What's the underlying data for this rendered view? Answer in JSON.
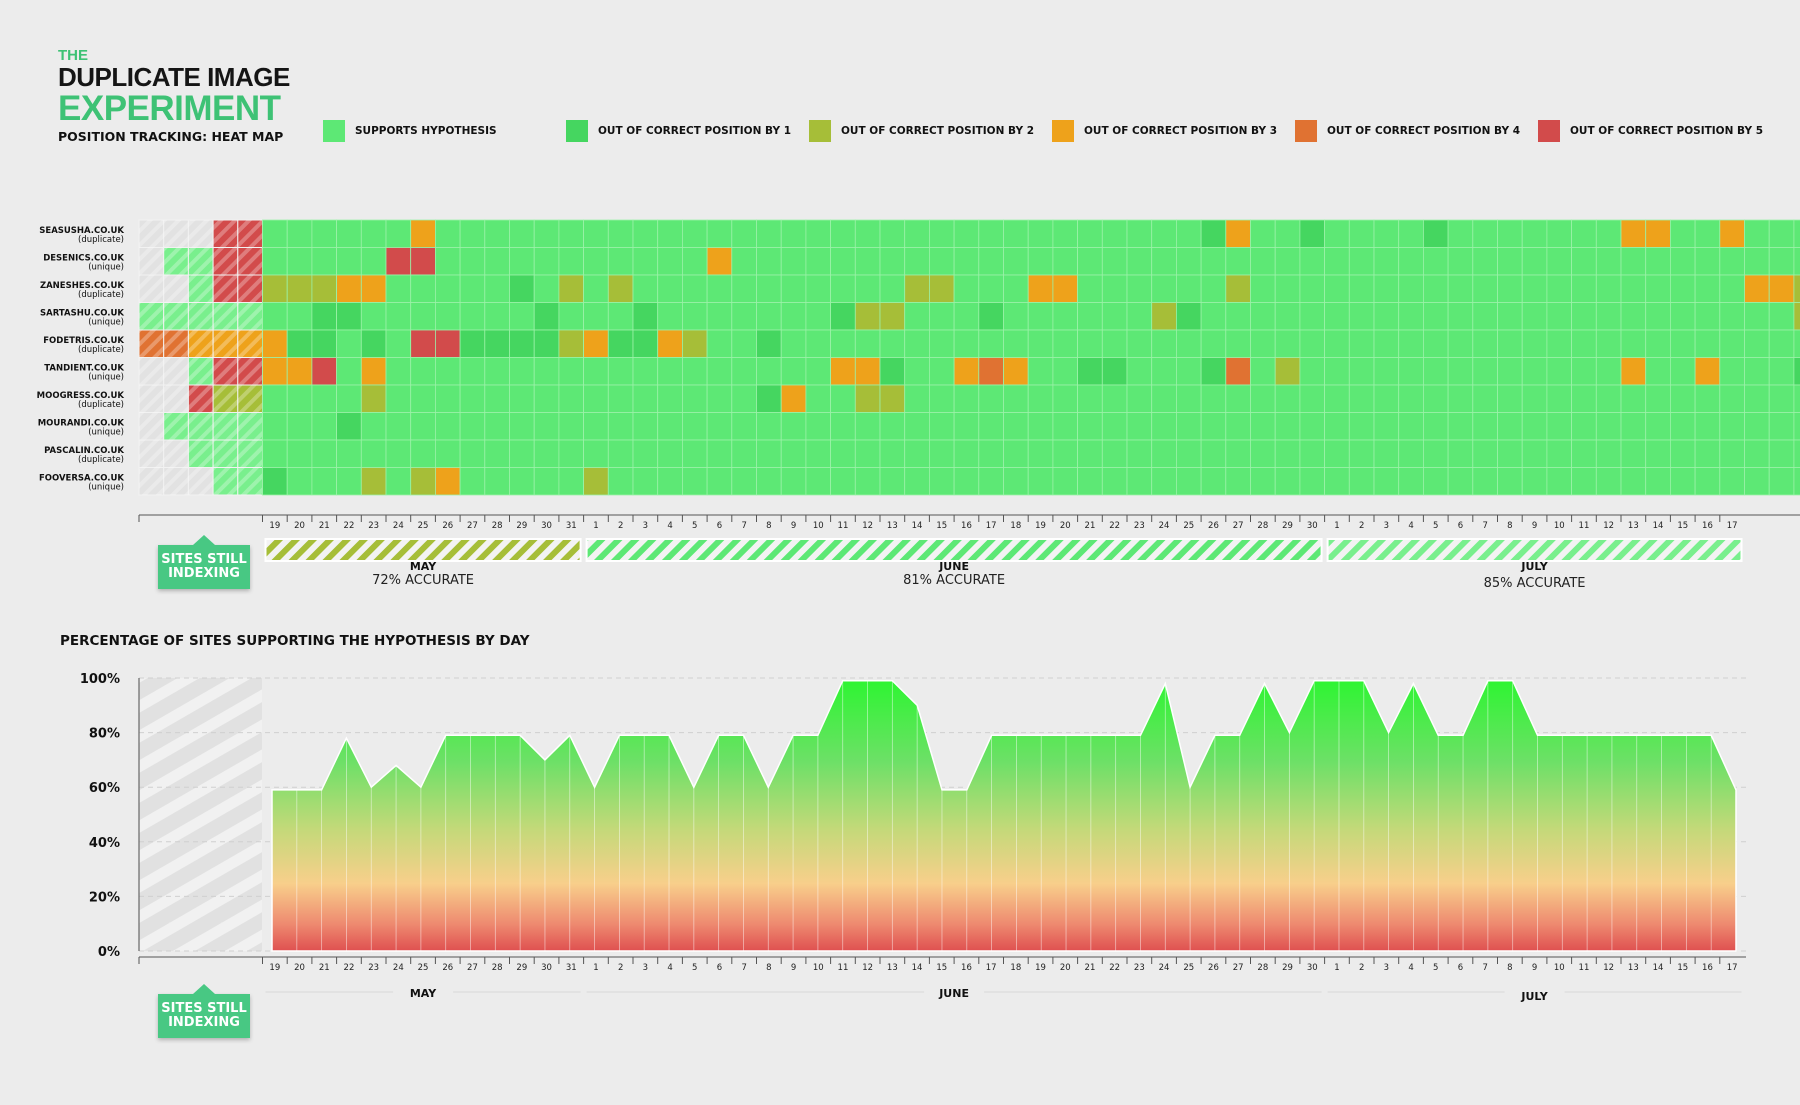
{
  "title": {
    "the": "THE",
    "line1": "DUPLICATE IMAGE",
    "line2": "EXPERIMENT",
    "caption": "POSITION TRACKING: HEAT MAP"
  },
  "colors": {
    "0": "#5de875",
    "1": "#45d660",
    "2": "#a6be38",
    "3": "#eea21b",
    "4": "#e07232",
    "5": "#d24b4b",
    "light": "#79ef8d"
  },
  "legend": [
    {
      "code": "0",
      "label": "SUPPORTS HYPOTHESIS"
    },
    {
      "code": "1",
      "label": "OUT OF CORRECT POSITION BY 1"
    },
    {
      "code": "2",
      "label": "OUT OF CORRECT POSITION BY 2"
    },
    {
      "code": "3",
      "label": "OUT OF CORRECT POSITION BY 3"
    },
    {
      "code": "4",
      "label": "OUT OF CORRECT POSITION BY 4"
    },
    {
      "code": "5",
      "label": "OUT OF CORRECT POSITION BY 5"
    }
  ],
  "badge_text": [
    "SITES STILL",
    "INDEXING"
  ],
  "chart_data": [
    {
      "type": "heatmap",
      "title": "",
      "rows": [
        {
          "name": "SEASUSHA.CO.UK",
          "type": "(duplicate)"
        },
        {
          "name": "DESENICS.CO.UK",
          "type": "(unique)"
        },
        {
          "name": "ZANESHES.CO.UK",
          "type": "(duplicate)"
        },
        {
          "name": "SARTASHU.CO.UK",
          "type": "(unique)"
        },
        {
          "name": "FODETRIS.CO.UK",
          "type": "(duplicate)"
        },
        {
          "name": "TANDIENT.CO.UK",
          "type": "(unique)"
        },
        {
          "name": "MOOGRESS.CO.UK",
          "type": "(duplicate)"
        },
        {
          "name": "MOURANDI.CO.UK",
          "type": "(unique)"
        },
        {
          "name": "PASCALIN.CO.UK",
          "type": "(duplicate)"
        },
        {
          "name": "FOOVERSA.CO.UK",
          "type": "(unique)"
        }
      ],
      "indexing_cells": [
        "ggg55",
        "gLL55",
        "ggL55",
        "LLLLL",
        "44333",
        "ggL55",
        "gg522",
        "gLLLL",
        "ggLLL",
        "gggLL"
      ],
      "day_labels": [
        19,
        20,
        21,
        22,
        23,
        24,
        25,
        26,
        27,
        28,
        29,
        30,
        31,
        1,
        2,
        3,
        4,
        5,
        6,
        7,
        8,
        9,
        10,
        11,
        12,
        13,
        14,
        15,
        16,
        17,
        18,
        19,
        20,
        21,
        22,
        23,
        24,
        25,
        26,
        27,
        28,
        29,
        30,
        1,
        2,
        3,
        4,
        5,
        6,
        7,
        8,
        9,
        10,
        11,
        12,
        13,
        14,
        15,
        16,
        17
      ],
      "cells": [
        "000000300000000000000000000000000000001300100001000000033003000",
        "000005500000000000300000000000000000000000000000000000000000000",
        "222330000010202000000000002200033000000200000000000000000000332",
        "001100000001000100000001220001000000210000000000000000000000002",
        "311010551111231132001000000000000000000000000000000000000000000",
        "335030000000000000000003310034300110001402000000000000030030001",
        "000020000000000000001300220000000000000000000000000000000000000",
        "000100000000000000000000000000000000000000000000000000000000000",
        "000000000000000000000000000000000000000000000000000000000000000",
        "100020230000020000000000000000000000000000000000000000000000000"
      ],
      "months": [
        {
          "name": "MAY",
          "accuracy": "72% ACCURATE"
        },
        {
          "name": "JUNE",
          "accuracy": "81% ACCURATE"
        },
        {
          "name": "JULY",
          "accuracy": "85% ACCURATE"
        }
      ]
    },
    {
      "type": "area",
      "title": "PERCENTAGE OF SITES SUPPORTING THE HYPOTHESIS BY DAY",
      "yticks": [
        "100%",
        "80%",
        "60%",
        "40%",
        "20%",
        "0%"
      ],
      "ylim": [
        0,
        100
      ],
      "x": [
        19,
        20,
        21,
        22,
        23,
        24,
        25,
        26,
        27,
        28,
        29,
        30,
        31,
        1,
        2,
        3,
        4,
        5,
        6,
        7,
        8,
        9,
        10,
        11,
        12,
        13,
        14,
        15,
        16,
        17,
        18,
        19,
        20,
        21,
        22,
        23,
        24,
        25,
        26,
        27,
        28,
        29,
        30,
        1,
        2,
        3,
        4,
        5,
        6,
        7,
        8,
        9,
        10,
        11,
        12,
        13,
        14,
        15,
        16,
        17
      ],
      "months": [
        "MAY",
        "JUNE",
        "JULY"
      ],
      "values": [
        59,
        59,
        59,
        78,
        60,
        68,
        60,
        79,
        79,
        79,
        79,
        70,
        79,
        60,
        79,
        79,
        79,
        60,
        79,
        79,
        60,
        79,
        79,
        99,
        99,
        99,
        90,
        59,
        59,
        79,
        79,
        79,
        79,
        79,
        79,
        79,
        98,
        60,
        79,
        79,
        98,
        80,
        99,
        99,
        99,
        80,
        98,
        79,
        79,
        99,
        99,
        79,
        79,
        79,
        79,
        79,
        79,
        79,
        79,
        59
      ]
    }
  ]
}
